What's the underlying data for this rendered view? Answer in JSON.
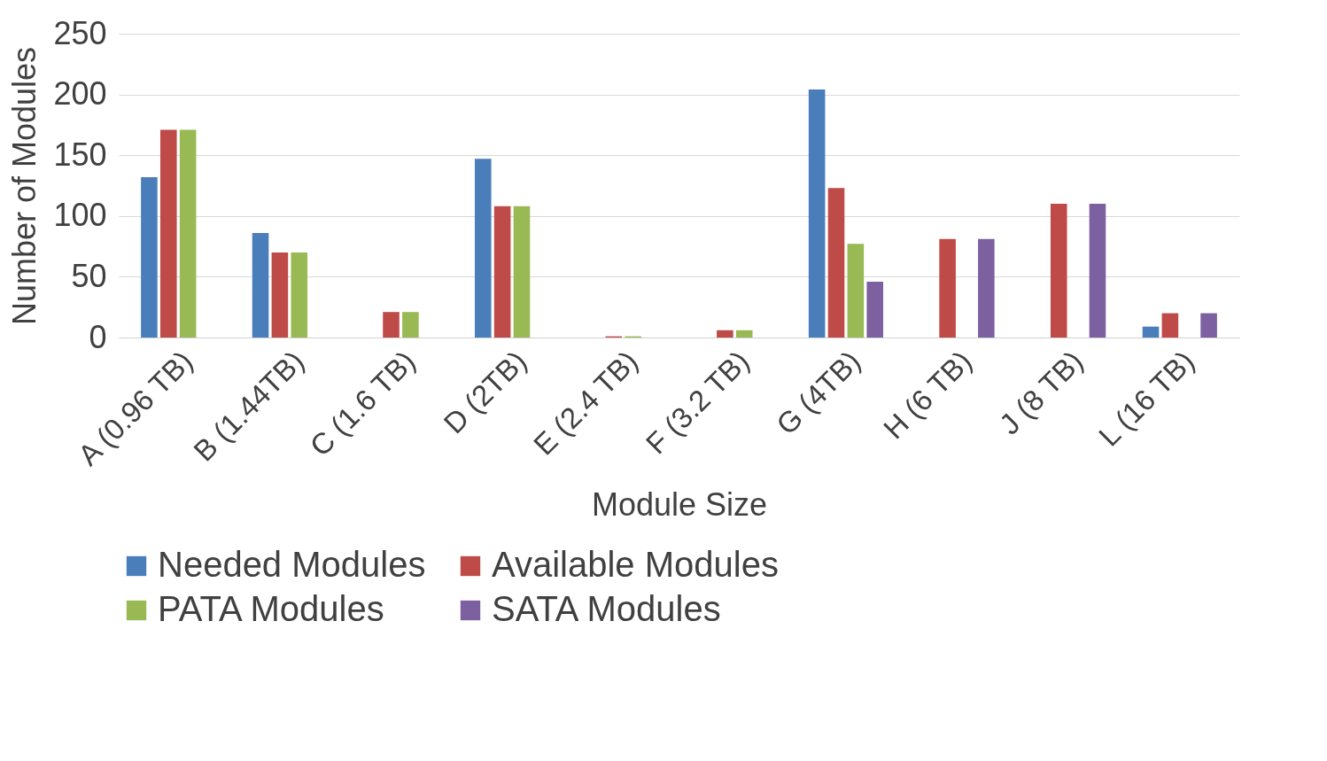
{
  "chart_data": {
    "type": "bar",
    "xlabel": "Module Size",
    "ylabel": "Number of Modules",
    "categories": [
      "A (0.96 TB)",
      "B (1.44TB)",
      "C (1.6 TB)",
      "D (2TB)",
      "E (2.4 TB)",
      "F (3.2 TB)",
      "G (4TB)",
      "H (6 TB)",
      "J (8 TB)",
      "L (16 TB)"
    ],
    "series": [
      {
        "name": "Needed Modules",
        "color": "#4a7ebb",
        "values": [
          132,
          86,
          null,
          147,
          null,
          null,
          204,
          null,
          null,
          9
        ]
      },
      {
        "name": "Available Modules",
        "color": "#be4b48",
        "values": [
          171,
          70,
          21,
          108,
          1,
          6,
          123,
          81,
          110,
          20
        ]
      },
      {
        "name": "PATA Modules",
        "color": "#98b954",
        "values": [
          171,
          70,
          21,
          108,
          1,
          6,
          77,
          null,
          null,
          null
        ]
      },
      {
        "name": "SATA Modules",
        "color": "#7d60a0",
        "values": [
          null,
          null,
          null,
          null,
          null,
          null,
          46,
          81,
          110,
          20
        ]
      }
    ],
    "ylim": [
      0,
      250
    ],
    "yticks": [
      0,
      50,
      100,
      150,
      200,
      250
    ],
    "grid": "y",
    "legend": "bottom"
  }
}
